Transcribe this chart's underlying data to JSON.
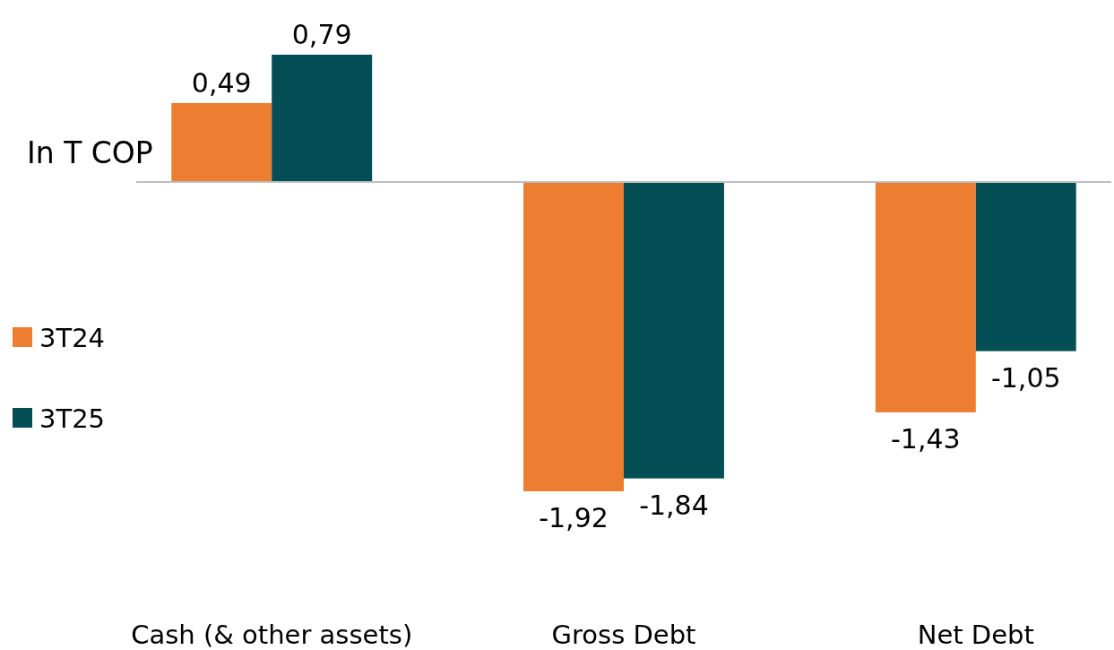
{
  "chart_data": {
    "type": "bar",
    "ylabel": "In T COP",
    "categories": [
      "Cash (& other assets)",
      "Gross Debt",
      "Net Debt"
    ],
    "series": [
      {
        "name": "3T24",
        "color": "#ed7d31",
        "values": [
          0.49,
          -1.92,
          -1.43
        ],
        "value_labels": [
          "0,49",
          "-1,92",
          "-1,43"
        ]
      },
      {
        "name": "3T25",
        "color": "#034f55",
        "values": [
          0.79,
          -1.84,
          -1.05
        ],
        "value_labels": [
          "0,79",
          "-1,84",
          "-1,05"
        ]
      }
    ],
    "legend": "left"
  }
}
